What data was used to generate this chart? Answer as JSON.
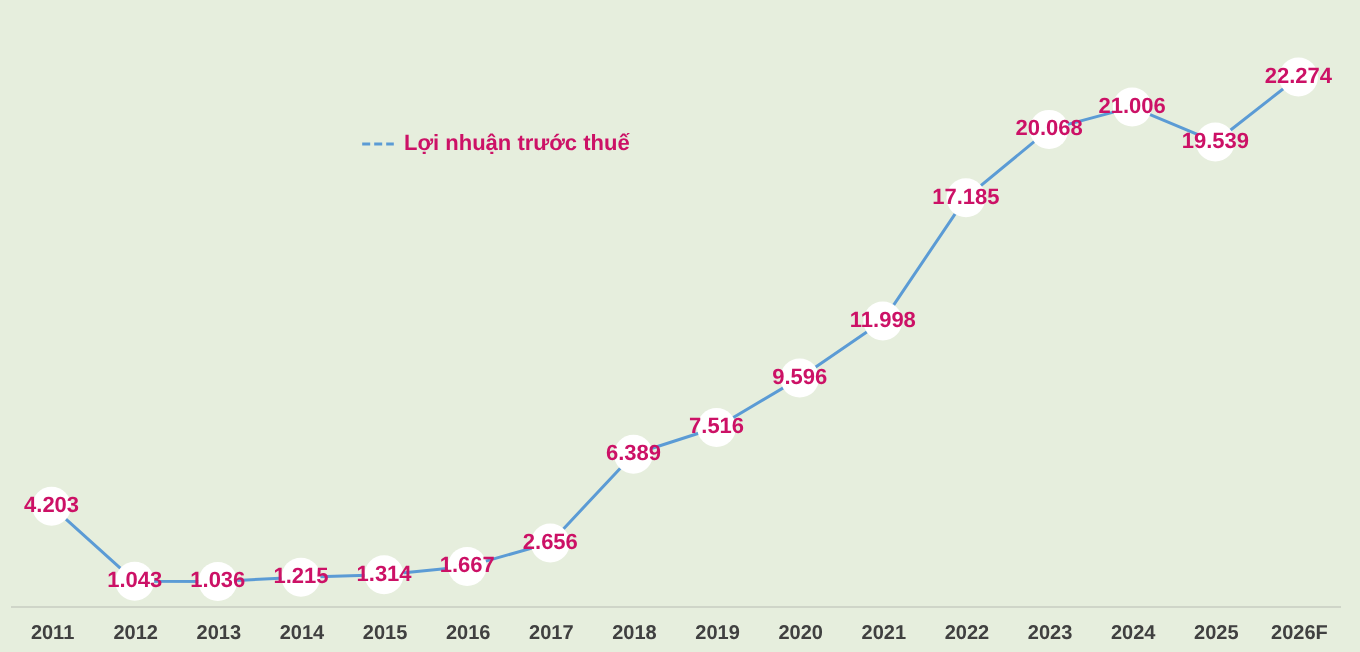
{
  "chart_data": {
    "type": "line",
    "categories": [
      "2011",
      "2012",
      "2013",
      "2014",
      "2015",
      "2016",
      "2017",
      "2018",
      "2019",
      "2020",
      "2021",
      "2022",
      "2023",
      "2024",
      "2025",
      "2026F"
    ],
    "series": [
      {
        "name": "Lợi nhuận trước thuế",
        "color": "#5b9bd5",
        "values": [
          4203,
          1043,
          1036,
          1215,
          1314,
          1667,
          2656,
          6389,
          7516,
          9596,
          11998,
          17185,
          20068,
          21006,
          19539,
          22274
        ],
        "value_labels": [
          "4.203",
          "1.043",
          "1.036",
          "1.215",
          "1.314",
          "1.667",
          "2.656",
          "6.389",
          "7.516",
          "9.596",
          "11.998",
          "17.185",
          "20.068",
          "21.006",
          "19.539",
          "22.274"
        ]
      }
    ],
    "legend": "top left",
    "marker": "circle",
    "line_style": "solid",
    "grid": false,
    "tick_labels": "x"
  }
}
